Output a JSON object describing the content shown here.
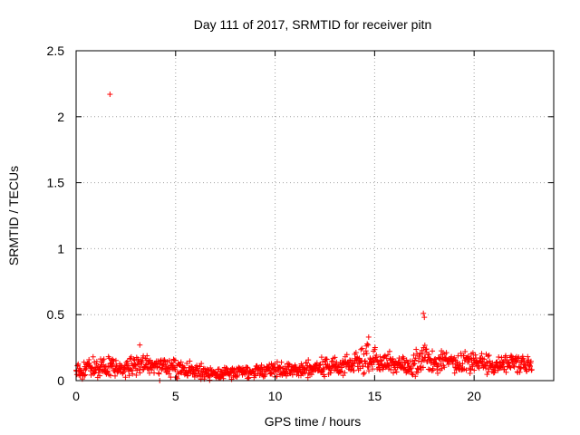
{
  "chart_data": {
    "type": "scatter",
    "title": "Day 111 of 2017, SRMTID for receiver pitn",
    "xlabel": "GPS time / hours",
    "ylabel": "SRMTID / TECUs",
    "xlim": [
      0,
      24
    ],
    "ylim": [
      0,
      2.5
    ],
    "xticks": [
      0,
      5,
      10,
      15,
      20
    ],
    "xtick_labels": [
      "0",
      "5",
      "10",
      "15",
      "20"
    ],
    "yticks": [
      0,
      0.5,
      1,
      1.5,
      2,
      2.5
    ],
    "ytick_labels": [
      "0",
      "0.5",
      "1",
      "1.5",
      "2",
      "2.5"
    ],
    "grid": true,
    "marker": "+",
    "series": [
      {
        "name": "SRMTID",
        "color": "#ff0000",
        "x_start": 0.0,
        "x_end": 22.9,
        "envelope_hours": [
          0,
          1,
          2,
          3,
          4,
          5,
          6,
          7,
          8,
          9,
          10,
          11,
          12,
          13,
          14,
          14.7,
          15.5,
          16.5,
          17.0,
          17.5,
          18,
          19,
          20,
          21,
          22,
          22.9
        ],
        "envelope_mean": [
          0.08,
          0.1,
          0.1,
          0.12,
          0.12,
          0.09,
          0.07,
          0.05,
          0.06,
          0.07,
          0.08,
          0.09,
          0.1,
          0.11,
          0.13,
          0.16,
          0.14,
          0.12,
          0.13,
          0.17,
          0.15,
          0.13,
          0.14,
          0.12,
          0.13,
          0.12
        ],
        "envelope_spread": [
          0.06,
          0.06,
          0.06,
          0.07,
          0.07,
          0.06,
          0.05,
          0.04,
          0.04,
          0.05,
          0.05,
          0.05,
          0.06,
          0.07,
          0.08,
          0.1,
          0.08,
          0.07,
          0.08,
          0.09,
          0.08,
          0.07,
          0.07,
          0.06,
          0.06,
          0.06
        ],
        "notable_points": [
          {
            "x": 1.7,
            "y": 2.17
          },
          {
            "x": 17.45,
            "y": 0.51
          },
          {
            "x": 17.5,
            "y": 0.48
          },
          {
            "x": 14.7,
            "y": 0.33
          },
          {
            "x": 3.2,
            "y": 0.27
          },
          {
            "x": 4.2,
            "y": 0.0
          }
        ]
      }
    ]
  }
}
